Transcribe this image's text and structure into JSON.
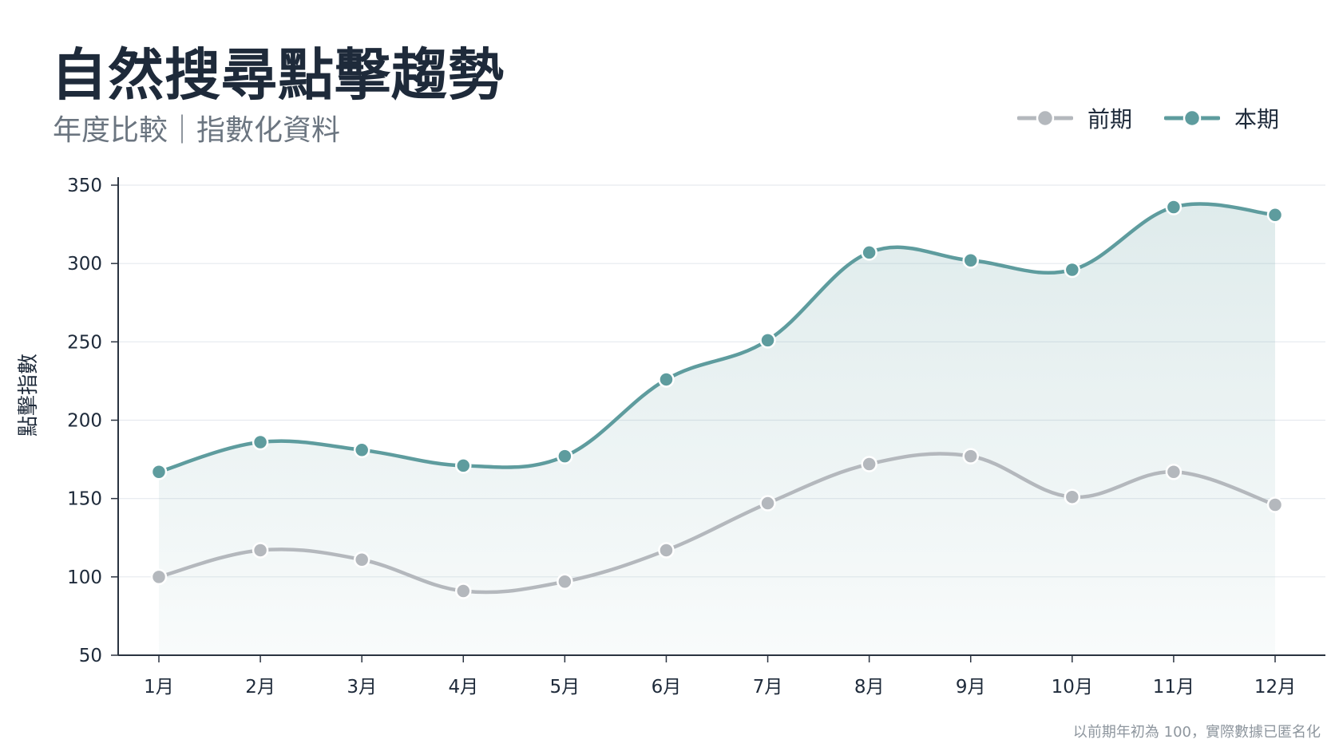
{
  "header": {
    "title": "自然搜尋點擊趨勢",
    "subtitle": "年度比較｜指數化資料"
  },
  "footnote": "以前期年初為 100，實際數據已匿名化",
  "colors": {
    "current": "#5e9c9e",
    "previous": "#b4b8bd",
    "axis": "#2a3340",
    "grid": "#e6eaef"
  },
  "chart_data": {
    "type": "line",
    "title": "自然搜尋點擊趨勢",
    "subtitle": "年度比較｜指數化資料",
    "xlabel": "",
    "ylabel": "點擊指數",
    "ylim": [
      50,
      350
    ],
    "yticks": [
      50,
      100,
      150,
      200,
      250,
      300,
      350
    ],
    "categories": [
      "1月",
      "2月",
      "3月",
      "4月",
      "5月",
      "6月",
      "7月",
      "8月",
      "9月",
      "10月",
      "11月",
      "12月"
    ],
    "legend_position": "top-right",
    "grid": "horizontal",
    "series": [
      {
        "name": "前期",
        "color": "#b4b8bd",
        "values": [
          100,
          117,
          111,
          91,
          97,
          117,
          147,
          172,
          177,
          151,
          167,
          146
        ]
      },
      {
        "name": "本期",
        "color": "#5e9c9e",
        "area": true,
        "values": [
          167,
          186,
          181,
          171,
          177,
          226,
          251,
          307,
          302,
          296,
          336,
          331
        ]
      }
    ]
  }
}
